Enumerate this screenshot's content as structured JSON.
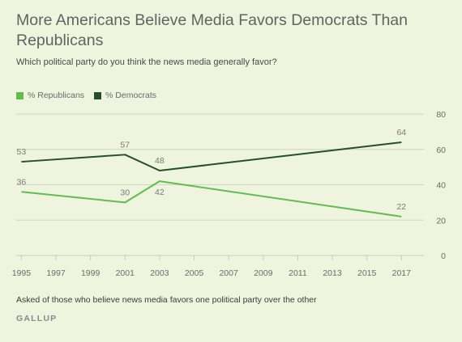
{
  "title": "More Americans Believe Media Favors Democrats Than Republicans",
  "subtitle": "Which political party do you think the news media generally favor?",
  "note": "Asked of those who believe news media favors one political party over the other",
  "source": "GALLUP",
  "chart_data": {
    "type": "line",
    "title": "More Americans Believe Media Favors Democrats Than Republicans",
    "subtitle": "Which political party do you think the news media generally favor?",
    "x_ticks": [
      "1995",
      "1997",
      "1999",
      "2001",
      "2003",
      "2005",
      "2007",
      "2009",
      "2011",
      "2013",
      "2015",
      "2017"
    ],
    "y_ticks": [
      "0",
      "20",
      "40",
      "60",
      "80"
    ],
    "xlim": [
      1994.7,
      2018.3
    ],
    "ylim": [
      0,
      80
    ],
    "grid": true,
    "legend_position": "top-left",
    "series": [
      {
        "name": "% Republicans",
        "color": "#62bd4f",
        "points": [
          {
            "x": 1995,
            "y": 36
          },
          {
            "x": 2001,
            "y": 30
          },
          {
            "x": 2003,
            "y": 42
          },
          {
            "x": 2017,
            "y": 22
          }
        ],
        "labels": [
          "36",
          "30",
          "42",
          "22"
        ]
      },
      {
        "name": "% Democrats",
        "color": "#26502a",
        "points": [
          {
            "x": 1995,
            "y": 53
          },
          {
            "x": 2001,
            "y": 57
          },
          {
            "x": 2003,
            "y": 48
          },
          {
            "x": 2017,
            "y": 64
          }
        ],
        "labels": [
          "53",
          "57",
          "48",
          "64"
        ]
      }
    ]
  }
}
